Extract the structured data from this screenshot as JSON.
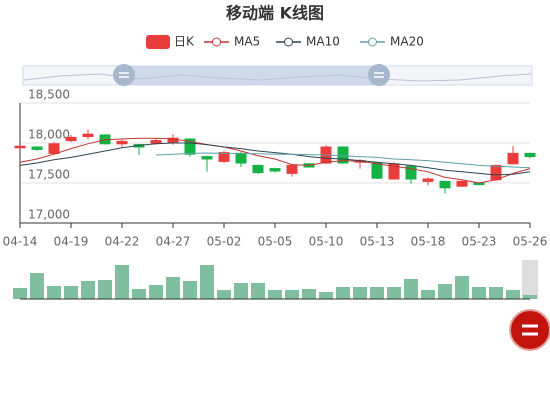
{
  "chart_data": {
    "type": "candlestick",
    "title": "移动端 K线图",
    "categories": [
      "04-14",
      null,
      null,
      "04-19",
      null,
      null,
      "04-22",
      null,
      null,
      "04-27",
      null,
      null,
      "05-02",
      null,
      null,
      "05-05",
      null,
      null,
      "05-10",
      null,
      null,
      "05-13",
      null,
      null,
      "05-18",
      null,
      null,
      "05-23",
      null,
      null,
      "05-26"
    ],
    "candles": {
      "name": "日K",
      "color": "#eb3c3c",
      "color_down": "#14b143",
      "open": [
        17940,
        17950,
        17870,
        18030,
        18080,
        18100,
        17990,
        17980,
        18000,
        18010,
        18050,
        17830,
        17770,
        17870,
        17720,
        17680,
        17620,
        17740,
        17750,
        17950,
        17760,
        17750,
        17550,
        17710,
        17520,
        17520,
        17460,
        17500,
        17540,
        17740,
        17870
      ],
      "close": [
        17960,
        17920,
        17990,
        18070,
        18110,
        17990,
        18020,
        17950,
        18030,
        18060,
        17860,
        17800,
        17880,
        17750,
        17630,
        17650,
        17720,
        17700,
        17950,
        17750,
        17780,
        17560,
        17740,
        17550,
        17550,
        17440,
        17520,
        17480,
        17720,
        17870,
        17830
      ],
      "low": [
        17930,
        17900,
        17850,
        18010,
        18050,
        17980,
        17950,
        17850,
        17980,
        17980,
        17830,
        17640,
        17750,
        17700,
        17610,
        17630,
        17580,
        17690,
        17740,
        17740,
        17680,
        17550,
        17540,
        17490,
        17470,
        17370,
        17450,
        17470,
        17530,
        17730,
        17810
      ],
      "high": [
        17970,
        17960,
        18010,
        18100,
        18170,
        18110,
        18040,
        17990,
        18060,
        18110,
        18060,
        17840,
        17900,
        17890,
        17730,
        17690,
        17740,
        17750,
        17970,
        17960,
        17800,
        17760,
        17760,
        17720,
        17570,
        17530,
        17530,
        17510,
        17730,
        17960,
        17880
      ]
    },
    "ma": [
      {
        "name": "MA5",
        "color": "#c23531",
        "values": [
          17760,
          17800,
          17860,
          17930,
          17990,
          18040,
          18050,
          18060,
          18060,
          18050,
          18020,
          17980,
          17950,
          17900,
          17840,
          17800,
          17730,
          17720,
          17760,
          17780,
          17770,
          17740,
          17710,
          17680,
          17640,
          17570,
          17540,
          17500,
          17540,
          17620,
          17680
        ]
      },
      {
        "name": "MA10",
        "color": "#2f4554",
        "values": [
          17720,
          17750,
          17790,
          17820,
          17860,
          17900,
          17940,
          17970,
          17990,
          18000,
          18000,
          17980,
          17950,
          17930,
          17900,
          17880,
          17860,
          17830,
          17810,
          17800,
          17780,
          17760,
          17740,
          17720,
          17690,
          17660,
          17640,
          17620,
          17600,
          17610,
          17640
        ]
      },
      {
        "name": "MA20",
        "color": "#61a0a8",
        "values": [
          null,
          null,
          null,
          null,
          null,
          null,
          null,
          null,
          17850,
          17860,
          17870,
          17875,
          17870,
          17870,
          17865,
          17860,
          17860,
          17855,
          17850,
          17840,
          17830,
          17820,
          17800,
          17790,
          17780,
          17760,
          17740,
          17720,
          17710,
          17700,
          17690
        ]
      }
    ],
    "volume": {
      "color": "#7fbe9e",
      "values": [
        11,
        26,
        13,
        13,
        18,
        19,
        34,
        10,
        14,
        22,
        18,
        34,
        9,
        16,
        16,
        9,
        9,
        10,
        7,
        12,
        12,
        12,
        12,
        20,
        9,
        15,
        23,
        12,
        12,
        9,
        4
      ]
    },
    "ylim": [
      17000,
      18500
    ],
    "yticks": [
      {
        "value": 17000,
        "label": "17,000"
      },
      {
        "value": 17500,
        "label": "17,500"
      },
      {
        "value": 18000,
        "label": "18,000"
      },
      {
        "value": 18500,
        "label": "18,500"
      }
    ]
  }
}
